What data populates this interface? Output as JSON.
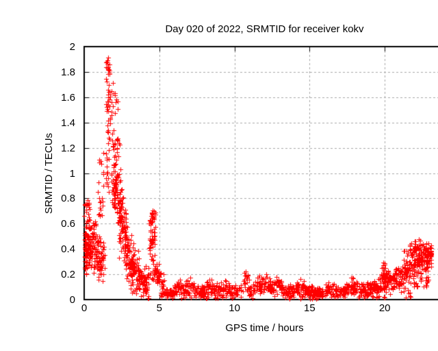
{
  "chart_data": {
    "type": "scatter",
    "title": "Day 020 of 2022, SRMTID for receiver kokv",
    "xlabel": "GPS time / hours",
    "ylabel": "SRMTID / TECUs",
    "xlim": [
      0,
      24
    ],
    "ylim": [
      0,
      2
    ],
    "xticks": [
      0,
      5,
      10,
      15,
      20
    ],
    "yticks": [
      0,
      0.2,
      0.4,
      0.6,
      0.8,
      1,
      1.2,
      1.4,
      1.6,
      1.8,
      2
    ],
    "grid": true,
    "legend": false,
    "marker": "plus",
    "marker_size_px": 7,
    "notable_points": [
      {
        "x": 1.55,
        "y": 1.93,
        "note": "maximum"
      },
      {
        "x": 2.1,
        "y": 1.72,
        "note": "second spike"
      },
      {
        "x": 0.05,
        "y": 0.8,
        "note": "start-of-day column 0.25-0.8"
      },
      {
        "x": 4.5,
        "y": 0.72,
        "note": "spike near 4.5 h"
      },
      {
        "x": 10.7,
        "y": 0.25,
        "note": "small bump"
      },
      {
        "x": 12.0,
        "y": 0.22,
        "note": "small bump"
      },
      {
        "x": 19.9,
        "y": 0.3,
        "note": "evening bump"
      },
      {
        "x": 22.3,
        "y": 0.47,
        "note": "end-of-day rise"
      },
      {
        "x": 21.7,
        "y": 0.02,
        "note": "isolated low pair"
      }
    ],
    "baseline": {
      "x_range": [
        5.3,
        19.6
      ],
      "y_mean": 0.06,
      "y_spread": 0.05
    },
    "x_data_range": [
      0,
      23.2
    ],
    "point_cloud_model": {
      "seed": 20220120,
      "segments": [
        {
          "x0": 0.02,
          "x1": 0.38,
          "n": 65,
          "dist": "u",
          "a": 0.25,
          "b": 0.8
        },
        {
          "x0": 0.05,
          "x1": 1.35,
          "n": 150,
          "dist": "g",
          "a": 0.4,
          "b": 0.34,
          "s": 0.09
        },
        {
          "x0": 0.35,
          "x1": 0.85,
          "n": 18,
          "dist": "u",
          "a": 0.45,
          "b": 0.65
        },
        {
          "x0": 0.9,
          "x1": 1.3,
          "n": 22,
          "dist": "u",
          "a": 0.55,
          "b": 1.18
        },
        {
          "x0": 1.4,
          "x1": 1.75,
          "n": 55,
          "dist": "u",
          "a": 0.78,
          "b": 1.9
        },
        {
          "x0": 1.45,
          "x1": 1.7,
          "n": 10,
          "dist": "u",
          "a": 1.78,
          "b": 1.93
        },
        {
          "x0": 1.8,
          "x1": 2.25,
          "n": 55,
          "dist": "u",
          "a": 0.72,
          "b": 1.72
        },
        {
          "x0": 1.95,
          "x1": 2.5,
          "n": 70,
          "dist": "g",
          "a": 1.0,
          "b": 0.8,
          "s": 0.17
        },
        {
          "x0": 2.3,
          "x1": 2.8,
          "n": 70,
          "dist": "g",
          "a": 0.65,
          "b": 0.5,
          "s": 0.14
        },
        {
          "x0": 2.7,
          "x1": 3.3,
          "n": 80,
          "dist": "g",
          "a": 0.42,
          "b": 0.25,
          "s": 0.1
        },
        {
          "x0": 3.2,
          "x1": 3.7,
          "n": 50,
          "dist": "g",
          "a": 0.25,
          "b": 0.2,
          "s": 0.08
        },
        {
          "x0": 3.6,
          "x1": 4.3,
          "n": 70,
          "dist": "g",
          "a": 0.16,
          "b": 0.14,
          "s": 0.06
        },
        {
          "x0": 4.3,
          "x1": 4.75,
          "n": 45,
          "dist": "u",
          "a": 0.15,
          "b": 0.72
        },
        {
          "x0": 4.35,
          "x1": 4.65,
          "n": 22,
          "dist": "u",
          "a": 0.45,
          "b": 0.7
        },
        {
          "x0": 4.65,
          "x1": 5.35,
          "n": 60,
          "dist": "g",
          "a": 0.22,
          "b": 0.08,
          "s": 0.055
        },
        {
          "x0": 5.3,
          "x1": 19.6,
          "n": 880,
          "dist": "band",
          "base": 0.055,
          "s": 0.025,
          "bumps": [
            [
              6.3,
              0.03,
              0.3
            ],
            [
              7.1,
              0.04,
              0.4
            ],
            [
              8.5,
              0.04,
              0.5
            ],
            [
              9.4,
              0.03,
              0.4
            ],
            [
              10.7,
              0.1,
              0.3
            ],
            [
              11.9,
              0.07,
              0.5
            ],
            [
              12.9,
              0.07,
              0.35
            ],
            [
              14.3,
              0.04,
              0.4
            ],
            [
              16.5,
              0.03,
              0.4
            ],
            [
              17.8,
              0.04,
              0.5
            ],
            [
              19.2,
              0.05,
              0.5
            ]
          ]
        },
        {
          "x0": 19.6,
          "x1": 20.15,
          "n": 50,
          "dist": "g",
          "a": 0.12,
          "b": 0.16,
          "s": 0.06
        },
        {
          "x0": 19.85,
          "x1": 20.05,
          "n": 15,
          "dist": "u",
          "a": 0.15,
          "b": 0.3
        },
        {
          "x0": 20.1,
          "x1": 21.25,
          "n": 90,
          "dist": "g",
          "a": 0.15,
          "b": 0.17,
          "s": 0.05
        },
        {
          "x0": 21.25,
          "x1": 22.55,
          "n": 140,
          "dist": "g",
          "a": 0.2,
          "b": 0.32,
          "s": 0.09
        },
        {
          "x0": 21.9,
          "x1": 22.45,
          "n": 25,
          "dist": "u",
          "a": 0.35,
          "b": 0.47
        },
        {
          "x0": 22.5,
          "x1": 23.1,
          "n": 70,
          "dist": "g",
          "a": 0.36,
          "b": 0.35,
          "s": 0.05
        },
        {
          "x0": 22.55,
          "x1": 23.0,
          "n": 20,
          "dist": "u",
          "a": 0.1,
          "b": 0.3
        }
      ],
      "outliers": [
        [
          21.68,
          0.025
        ],
        [
          21.74,
          0.02
        ],
        [
          8.75,
          0.01
        ],
        [
          14.4,
          0.006
        ]
      ]
    }
  },
  "colors": {
    "marker": "#ff0000",
    "grid": "#a8a8a8",
    "frame": "#000000",
    "text": "#000000",
    "background": "#ffffff"
  }
}
